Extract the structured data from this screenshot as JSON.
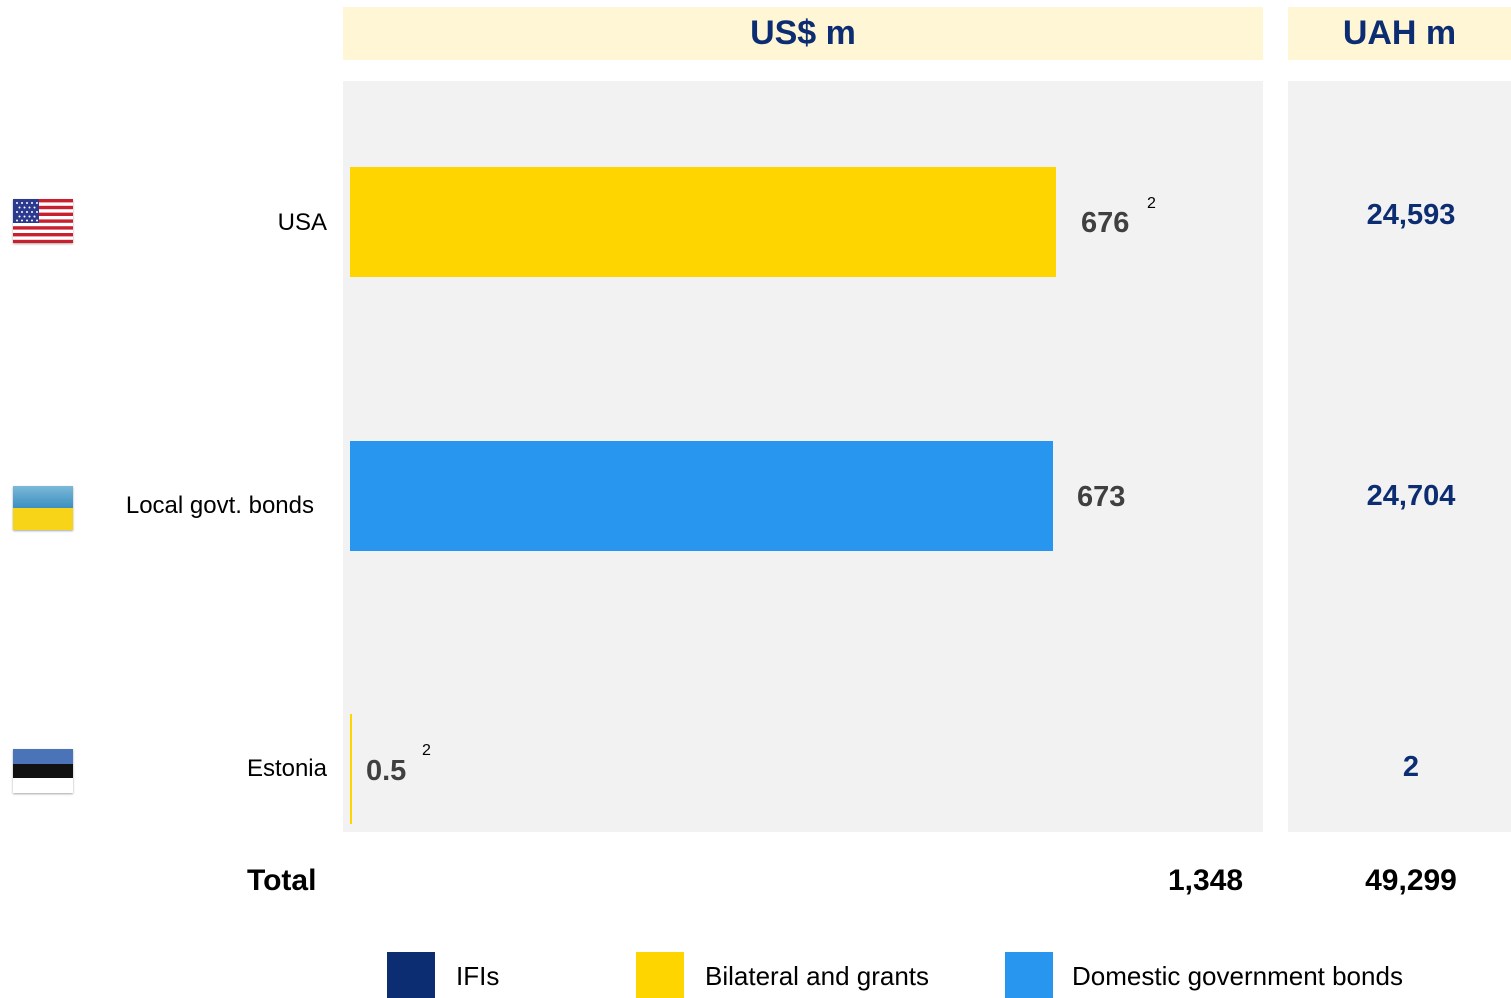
{
  "headers": {
    "usd": "US$ m",
    "uah": "UAH m"
  },
  "colors": {
    "ifis": "#0d2d72",
    "bilateral": "#ffd500",
    "domestic": "#2896ee",
    "header_bg": "#fff6d6",
    "panel_bg": "#f2f2f2"
  },
  "rows": [
    {
      "label": "USA",
      "flag": "usa-flag-icon",
      "usd_label": "676",
      "note": "2",
      "uah": "24,593"
    },
    {
      "label": "Local govt. bonds",
      "flag": "ukraine-flag-icon",
      "usd_label": "673",
      "note": "",
      "uah": "24,704"
    },
    {
      "label": "Estonia",
      "flag": "estonia-flag-icon",
      "usd_label": "0.5",
      "note": "2",
      "uah": "2"
    }
  ],
  "total": {
    "label": "Total",
    "usd": "1,348",
    "uah": "49,299"
  },
  "chart_data": {
    "type": "bar",
    "orientation": "horizontal",
    "categories": [
      "USA",
      "Local govt. bonds",
      "Estonia"
    ],
    "series": [
      {
        "name": "IFIs",
        "values": [
          0,
          0,
          0
        ]
      },
      {
        "name": "Bilateral and grants",
        "values": [
          676,
          0,
          0.5
        ]
      },
      {
        "name": "Domestic government bonds",
        "values": [
          0,
          673,
          0
        ]
      }
    ],
    "xlim": [
      0,
      676
    ],
    "legend_position": "bottom",
    "grid": false
  },
  "legend": [
    {
      "label": "IFIs",
      "color": "#0d2d72"
    },
    {
      "label": "Bilateral and grants",
      "color": "#ffd500"
    },
    {
      "label": "Domestic government bonds",
      "color": "#2896ee"
    }
  ]
}
